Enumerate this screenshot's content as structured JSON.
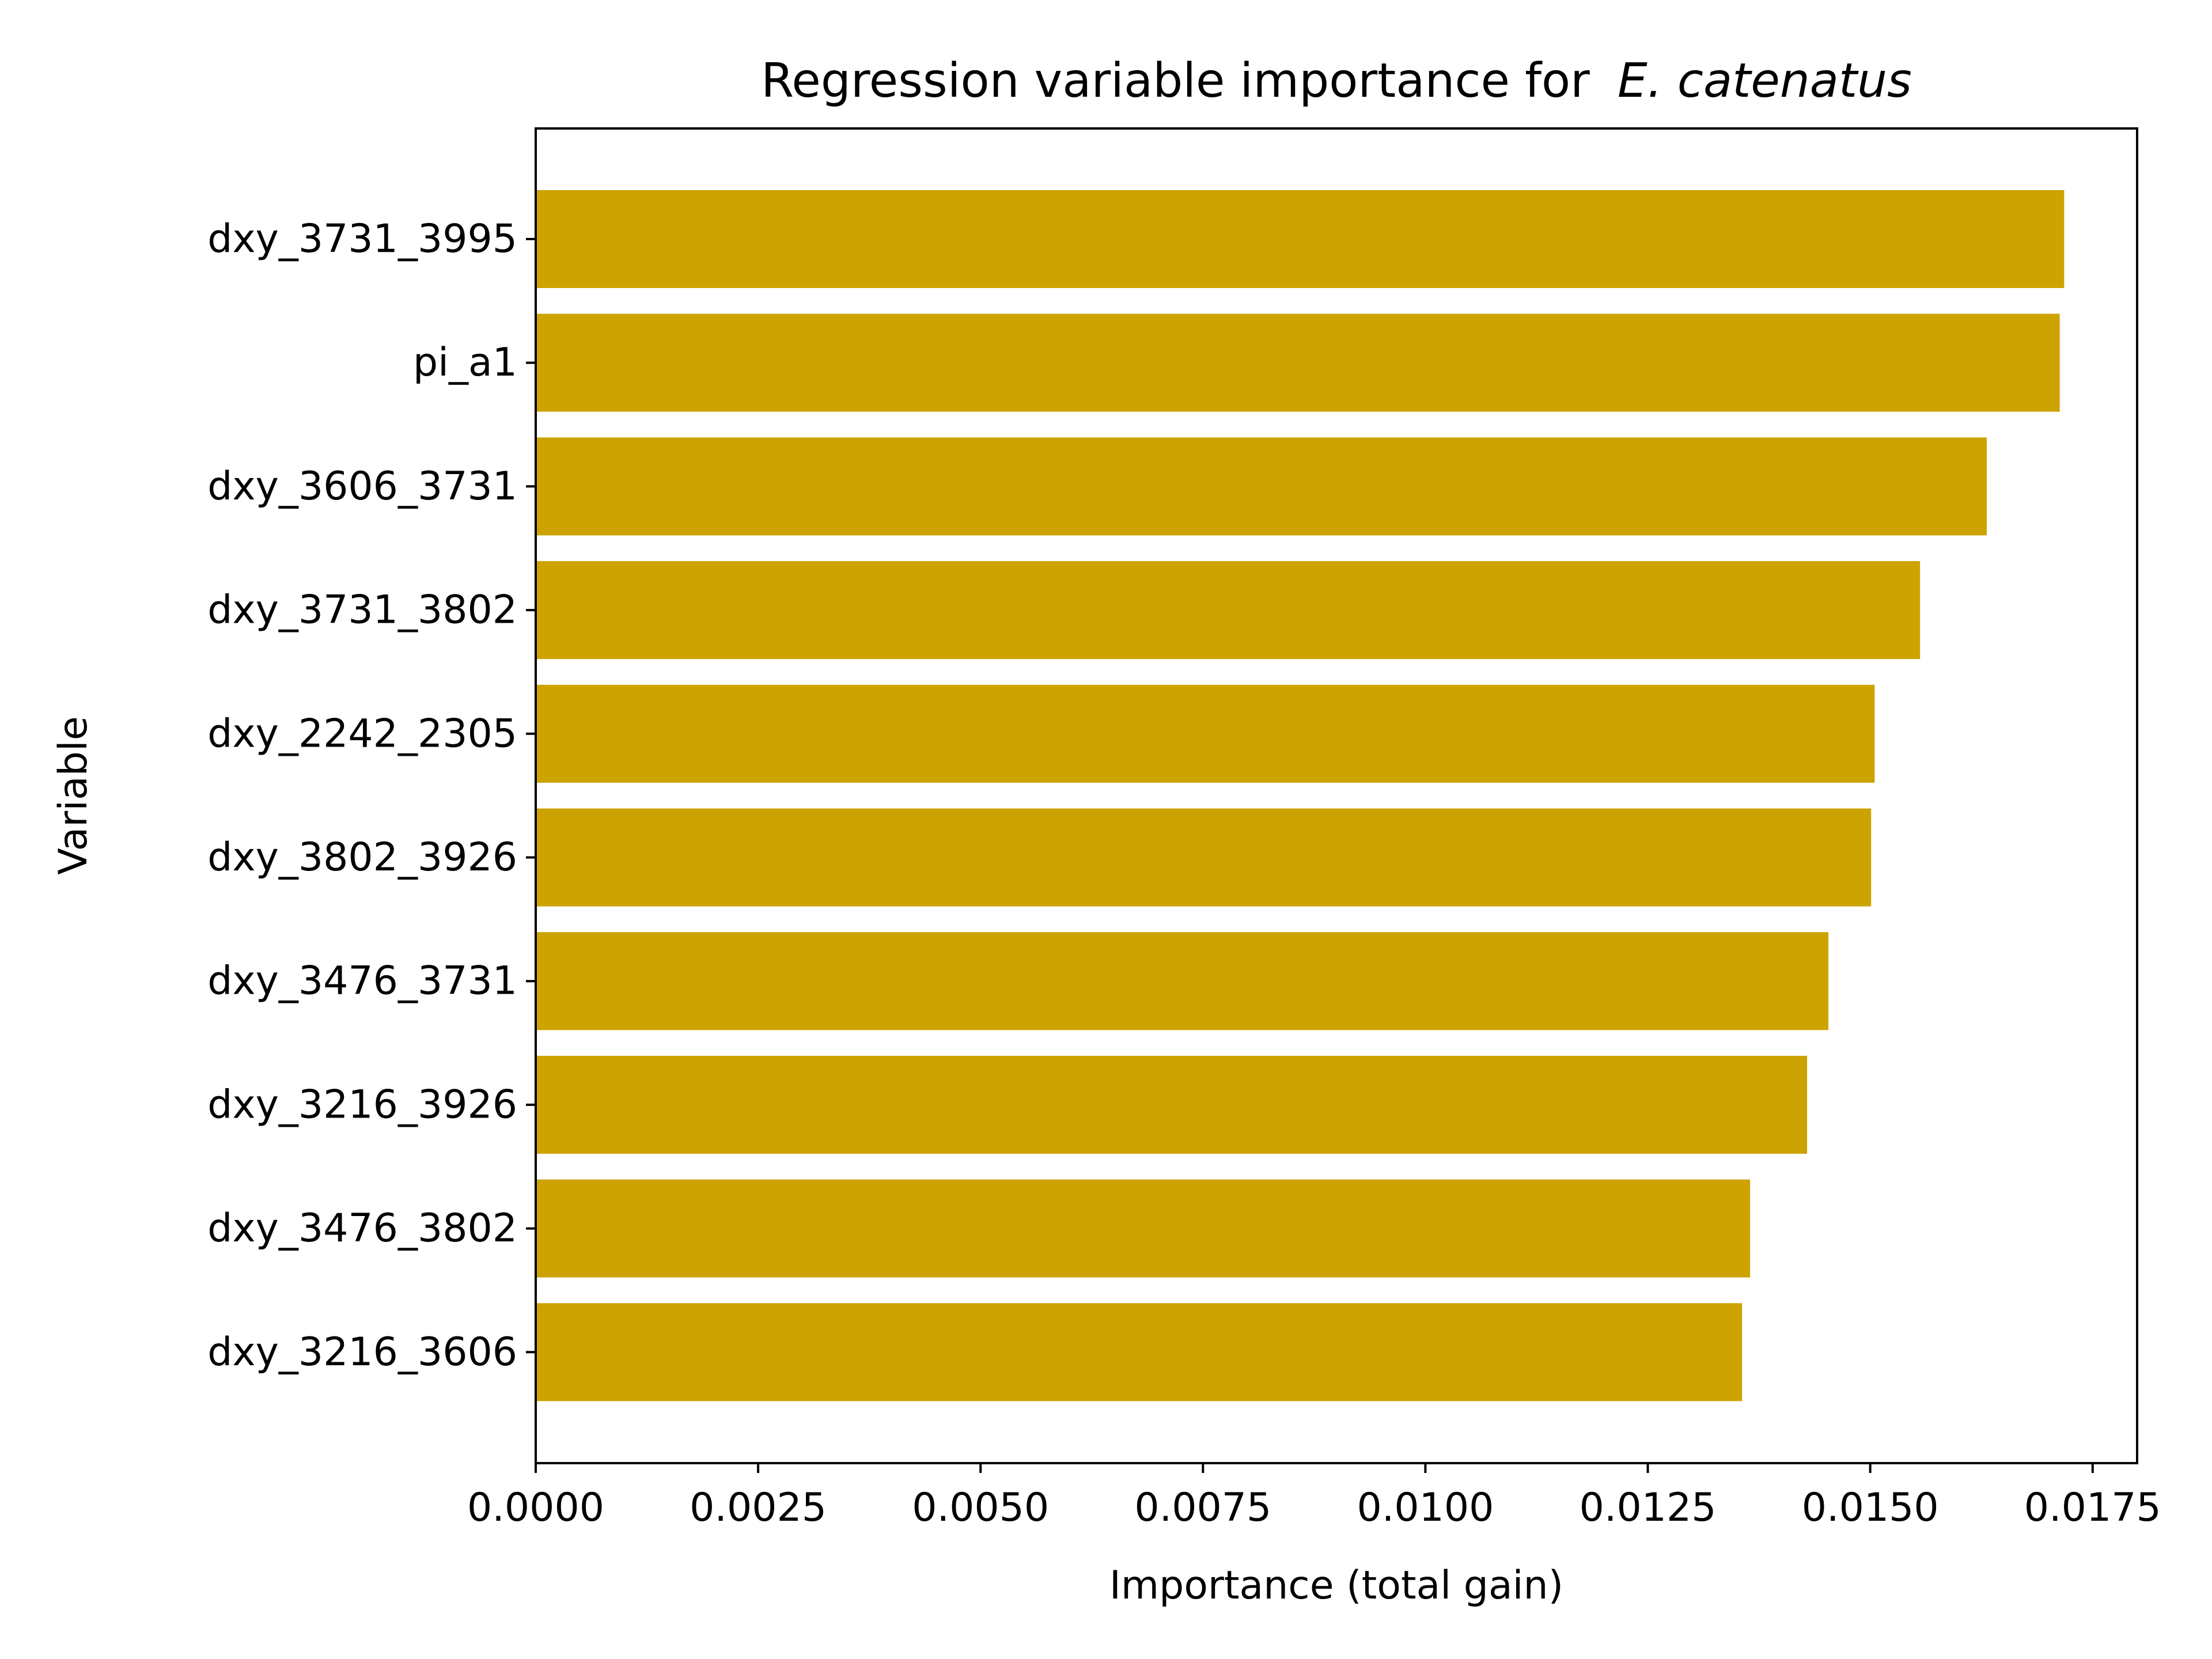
{
  "chart_data": {
    "type": "bar",
    "orientation": "horizontal",
    "title": "Regression variable importance for",
    "title_species": "E. catenatus",
    "xlabel": "Importance (total gain)",
    "ylabel": "Variable",
    "categories": [
      "dxy_3731_3995",
      "pi_a1",
      "dxy_3606_3731",
      "dxy_3731_3802",
      "dxy_2242_2305",
      "dxy_3802_3926",
      "dxy_3476_3731",
      "dxy_3216_3926",
      "dxy_3476_3802",
      "dxy_3216_3606"
    ],
    "values": [
      0.01718,
      0.01713,
      0.01631,
      0.01556,
      0.01505,
      0.01501,
      0.01453,
      0.01429,
      0.01365,
      0.01356
    ],
    "xlim": [
      0,
      0.018
    ],
    "xticks": [
      0.0,
      0.0025,
      0.005,
      0.0075,
      0.01,
      0.0125,
      0.015,
      0.0175
    ],
    "xtick_labels": [
      "0.0000",
      "0.0025",
      "0.0050",
      "0.0075",
      "0.0100",
      "0.0125",
      "0.0150",
      "0.0175"
    ],
    "bar_color": "#cca300",
    "grid": false,
    "legend": "none"
  }
}
